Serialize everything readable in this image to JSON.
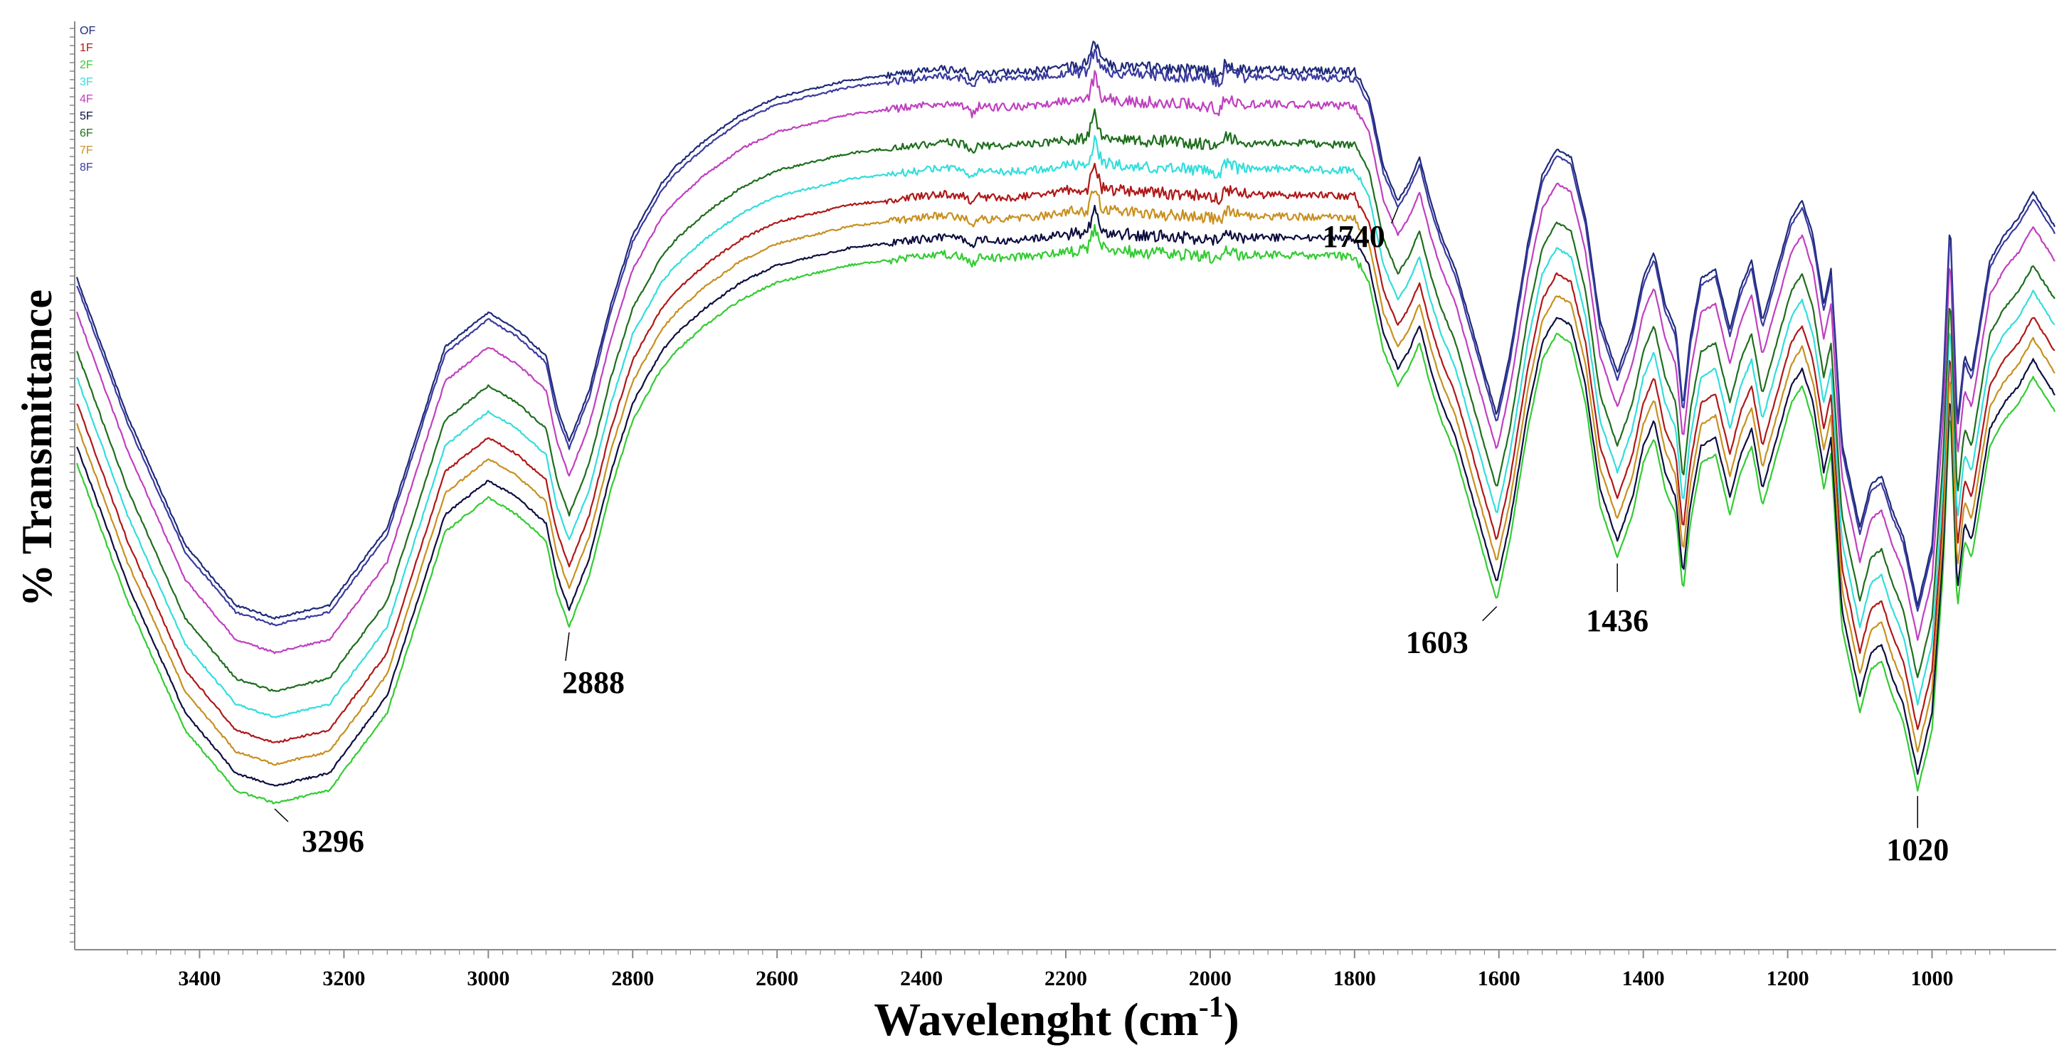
{
  "chart_data": {
    "type": "line",
    "title": "",
    "xlabel": "Wavelenght (cm",
    "xlabel_superscript": "-1",
    "xlabel_close": ")",
    "ylabel": "% Transmittance",
    "xlim": [
      3570,
      830
    ],
    "ylim": [
      0,
      100
    ],
    "x_reversed": true,
    "x_ticks": [
      3400,
      3200,
      3000,
      2800,
      2600,
      2400,
      2200,
      2000,
      1800,
      1600,
      1400,
      1200,
      1000
    ],
    "legend_position": "top-left",
    "peak_annotations": [
      {
        "label": "3296",
        "x": 3296
      },
      {
        "label": "2888",
        "x": 2888
      },
      {
        "label": "1740",
        "x": 1740
      },
      {
        "label": "1603",
        "x": 1603
      },
      {
        "label": "1436",
        "x": 1436
      },
      {
        "label": "1020",
        "x": 1020
      }
    ],
    "base_profile": {
      "x": [
        3570,
        3500,
        3420,
        3350,
        3296,
        3220,
        3140,
        3060,
        3000,
        2960,
        2920,
        2905,
        2888,
        2860,
        2830,
        2800,
        2760,
        2740,
        2700,
        2650,
        2600,
        2500,
        2400,
        2370,
        2340,
        2330,
        2320,
        2300,
        2250,
        2200,
        2170,
        2160,
        2150,
        2140,
        2100,
        2050,
        2000,
        1985,
        1980,
        1960,
        1900,
        1850,
        1800,
        1780,
        1760,
        1740,
        1725,
        1710,
        1695,
        1680,
        1660,
        1640,
        1620,
        1603,
        1585,
        1560,
        1540,
        1520,
        1500,
        1480,
        1460,
        1436,
        1415,
        1400,
        1385,
        1370,
        1355,
        1345,
        1335,
        1320,
        1300,
        1280,
        1265,
        1250,
        1235,
        1215,
        1195,
        1180,
        1165,
        1150,
        1140,
        1125,
        1110,
        1100,
        1085,
        1070,
        1055,
        1040,
        1020,
        1000,
        985,
        975,
        965,
        955,
        945,
        920,
        900,
        880,
        860,
        845,
        830
      ],
      "y": [
        71,
        55,
        40,
        33,
        31.5,
        33,
        42,
        63,
        67,
        65,
        62,
        56,
        52,
        58,
        68,
        76,
        82,
        84,
        87,
        90,
        92,
        94,
        95,
        95.3,
        95,
        94,
        95,
        94.8,
        95,
        95.6,
        95.8,
        98.5,
        96,
        95.8,
        95.5,
        95.3,
        95,
        94.5,
        96,
        95.2,
        95.2,
        95.1,
        95,
        92,
        84,
        80,
        82,
        85,
        80,
        76,
        72,
        66,
        60,
        55,
        62,
        75,
        83,
        86,
        85,
        78,
        66,
        60,
        65,
        71,
        74,
        68,
        65,
        56,
        64,
        71,
        72,
        65,
        70,
        73,
        66,
        72,
        78,
        80,
        76,
        68,
        72,
        52,
        46,
        42,
        47,
        48,
        44,
        41,
        33,
        40,
        58,
        78,
        54,
        62,
        60,
        73,
        76,
        78,
        81,
        79,
        77
      ]
    },
    "series": [
      {
        "name": "OF",
        "offset": 0,
        "color": "#1f2a7a"
      },
      {
        "name": "1F",
        "offset": 14.5,
        "color": "#b01818"
      },
      {
        "name": "2F",
        "offset": 21.5,
        "color": "#33cc33"
      },
      {
        "name": "3F",
        "offset": 11.5,
        "color": "#33dddd"
      },
      {
        "name": "4F",
        "offset": 4,
        "color": "#c040c0"
      },
      {
        "name": "5F",
        "offset": 19.5,
        "color": "#0d0d40"
      },
      {
        "name": "6F",
        "offset": 8.5,
        "color": "#1e6e1e"
      },
      {
        "name": "7F",
        "offset": 17,
        "color": "#c89020"
      },
      {
        "name": "8F",
        "offset": 0.8,
        "color": "#3a3aa0"
      }
    ]
  }
}
